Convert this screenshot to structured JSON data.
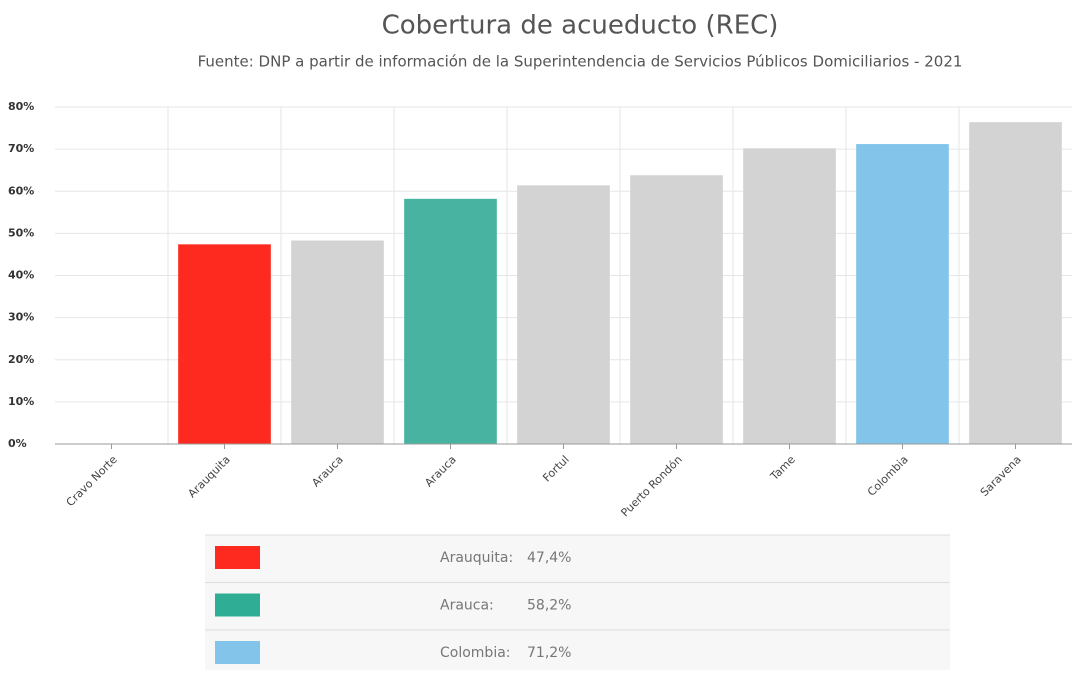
{
  "chart_data": {
    "type": "bar",
    "title": "Cobertura de acueducto (REC)",
    "subtitle": "Fuente: DNP a partir de información de la Superintendencia de Servicios Públicos Domiciliarios - 2021",
    "categories": [
      "Cravo Norte",
      "Arauquita",
      "Arauca",
      "Arauca",
      "Fortul",
      "Puerto Rondón",
      "Tame",
      "Colombia",
      "Saravena"
    ],
    "values": [
      0,
      47.4,
      48.3,
      58.2,
      61.4,
      63.8,
      70.2,
      71.2,
      76.4
    ],
    "colors": [
      "#d3d3d3",
      "#ff2a1f",
      "#d3d3d3",
      "#47b3a0",
      "#d3d3d3",
      "#d3d3d3",
      "#d3d3d3",
      "#82c4ea",
      "#d3d3d3"
    ],
    "ylim": [
      0,
      80
    ],
    "yticks": [
      {
        "value": 0,
        "label": "0%"
      },
      {
        "value": 10,
        "label": "10%"
      },
      {
        "value": 20,
        "label": "20%"
      },
      {
        "value": 30,
        "label": "30%"
      },
      {
        "value": 40,
        "label": "40%"
      },
      {
        "value": 50,
        "label": "50%"
      },
      {
        "value": 60,
        "label": "60%"
      },
      {
        "value": 70,
        "label": "70%"
      },
      {
        "value": 80,
        "label": "80%"
      }
    ],
    "grid": true,
    "legend": [
      {
        "label": "Arauquita:",
        "value": 47.4,
        "value_label": "47,4%",
        "color": "#ff2a1f"
      },
      {
        "label": "Arauca:",
        "value": 58.2,
        "value_label": "58,2%",
        "color": "#2fae95"
      },
      {
        "label": "Colombia:",
        "value": 71.2,
        "value_label": "71,2%",
        "color": "#82c4ea"
      }
    ]
  }
}
